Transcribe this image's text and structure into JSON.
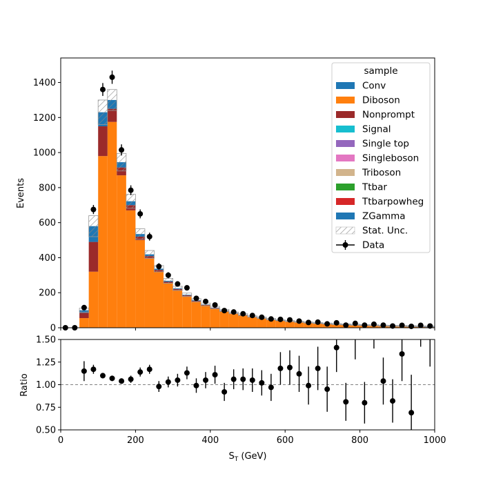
{
  "chart_data": [
    {
      "type": "bar",
      "stacked": true,
      "xlabel": "S",
      "xlabel_sub": "T",
      "xlabel_unit": " (GeV)",
      "ylabel": "Events",
      "xlim": [
        0,
        1000
      ],
      "ylim": [
        0,
        1540
      ],
      "yticks": [
        "0",
        "200",
        "400",
        "600",
        "800",
        "1000",
        "1200",
        "1400"
      ],
      "ytick_values": [
        0,
        200,
        400,
        600,
        800,
        1000,
        1200,
        1400
      ],
      "bin_edges": [
        50,
        75,
        100,
        125,
        150,
        175,
        200,
        225,
        250,
        275,
        300,
        325,
        350,
        375,
        400,
        425,
        450,
        475,
        500,
        525,
        550,
        575,
        600,
        625,
        650,
        675,
        700,
        725,
        750,
        775,
        800,
        825,
        850,
        875,
        900,
        925,
        950,
        975,
        1000
      ],
      "series": [
        {
          "name": "Diboson",
          "color": "#ff7f0e",
          "values": [
            55,
            320,
            980,
            1175,
            870,
            670,
            500,
            395,
            320,
            255,
            215,
            180,
            150,
            128,
            110,
            95,
            82,
            72,
            62,
            55,
            47,
            41,
            36,
            32,
            28,
            25,
            22,
            19,
            17,
            15,
            13,
            12,
            10,
            9,
            8,
            7,
            6,
            5
          ]
        },
        {
          "name": "Nonprompt",
          "color": "#9b2a2a",
          "values": [
            30,
            170,
            170,
            75,
            45,
            30,
            20,
            14,
            10,
            8,
            6,
            5,
            4,
            3,
            3,
            2,
            2,
            2,
            1,
            1,
            1,
            1,
            1,
            1,
            1,
            1,
            1,
            1,
            1,
            1,
            1,
            1,
            1,
            1,
            1,
            1,
            1,
            1
          ]
        },
        {
          "name": "ZGamma",
          "color": "#1f77b4",
          "values": [
            15,
            90,
            80,
            50,
            30,
            22,
            15,
            10,
            7,
            5,
            4,
            3,
            3,
            2,
            2,
            2,
            1,
            1,
            1,
            1,
            1,
            1,
            1,
            1,
            1,
            1,
            1,
            1,
            1,
            1,
            1,
            1,
            1,
            1,
            1,
            1,
            1,
            1
          ]
        }
      ],
      "stat_unc": [
        12,
        60,
        70,
        60,
        50,
        40,
        30,
        22,
        18,
        14,
        12,
        10,
        9,
        8,
        7,
        6,
        5,
        5,
        4,
        4,
        4,
        3,
        3,
        3,
        3,
        3,
        3,
        3,
        3,
        3,
        3,
        3,
        3,
        3,
        3,
        3,
        3,
        3
      ],
      "data": {
        "name": "Data",
        "x": [
          12.5,
          37.5,
          62.5,
          87.5,
          112.5,
          137.5,
          162.5,
          187.5,
          212.5,
          237.5,
          262.5,
          287.5,
          312.5,
          337.5,
          362.5,
          387.5,
          412.5,
          437.5,
          462.5,
          487.5,
          512.5,
          537.5,
          562.5,
          587.5,
          612.5,
          637.5,
          662.5,
          687.5,
          712.5,
          737.5,
          762.5,
          787.5,
          812.5,
          837.5,
          862.5,
          887.5,
          912.5,
          937.5,
          962.5,
          987.5
        ],
        "y": [
          0,
          0,
          115,
          675,
          1360,
          1430,
          1015,
          785,
          650,
          520,
          350,
          300,
          250,
          228,
          168,
          150,
          130,
          98,
          90,
          80,
          70,
          60,
          50,
          48,
          45,
          38,
          30,
          32,
          22,
          28,
          15,
          25,
          15,
          20,
          15,
          10,
          14,
          8,
          14,
          10
        ]
      },
      "legend": {
        "title": "sample",
        "placement": "upper right",
        "entries": [
          {
            "name": "Conv",
            "color": "#1f77b4",
            "kind": "patch"
          },
          {
            "name": "Diboson",
            "color": "#ff7f0e",
            "kind": "patch"
          },
          {
            "name": "Nonprompt",
            "color": "#9b2a2a",
            "kind": "patch"
          },
          {
            "name": "Signal",
            "color": "#17becf",
            "kind": "patch"
          },
          {
            "name": "Single top",
            "color": "#9467bd",
            "kind": "patch"
          },
          {
            "name": "Singleboson",
            "color": "#e377c2",
            "kind": "patch"
          },
          {
            "name": "Triboson",
            "color": "#d2b48c",
            "kind": "patch"
          },
          {
            "name": "Ttbar",
            "color": "#2ca02c",
            "kind": "patch"
          },
          {
            "name": "Ttbarpowheg",
            "color": "#d62728",
            "kind": "patch"
          },
          {
            "name": "ZGamma",
            "color": "#1f77b4",
            "kind": "patch"
          },
          {
            "name": "Stat. Unc.",
            "color": "#888888",
            "kind": "hatch"
          },
          {
            "name": "Data",
            "color": "#000000",
            "kind": "errorbar"
          }
        ]
      }
    },
    {
      "type": "scatter",
      "xlabel": "S",
      "xlabel_sub": "T",
      "xlabel_unit": " (GeV)",
      "ylabel": "Ratio",
      "xlim": [
        0,
        1000
      ],
      "ylim": [
        0.5,
        1.5
      ],
      "xticks": [
        "0",
        "200",
        "400",
        "600",
        "800",
        "1000"
      ],
      "xtick_values": [
        0,
        200,
        400,
        600,
        800,
        1000
      ],
      "yticks": [
        "0.50",
        "0.75",
        "1.00",
        "1.25",
        "1.50"
      ],
      "ytick_values": [
        0.5,
        0.75,
        1.0,
        1.25,
        1.5
      ],
      "reference_line": 1.0,
      "points": {
        "x": [
          62.5,
          87.5,
          112.5,
          137.5,
          162.5,
          187.5,
          212.5,
          237.5,
          262.5,
          287.5,
          312.5,
          337.5,
          362.5,
          387.5,
          412.5,
          437.5,
          462.5,
          487.5,
          512.5,
          537.5,
          562.5,
          587.5,
          612.5,
          637.5,
          662.5,
          687.5,
          712.5,
          737.5,
          762.5,
          812.5,
          862.5,
          887.5,
          912.5,
          937.5
        ],
        "y": [
          1.15,
          1.17,
          1.1,
          1.07,
          1.04,
          1.06,
          1.14,
          1.17,
          0.98,
          1.03,
          1.05,
          1.13,
          0.99,
          1.05,
          1.11,
          0.92,
          1.06,
          1.06,
          1.05,
          1.02,
          0.97,
          1.18,
          1.19,
          1.12,
          0.99,
          1.18,
          0.95,
          1.41,
          0.81,
          0.8,
          1.04,
          0.82,
          1.34,
          0.69
        ],
        "err": [
          0.11,
          0.05,
          0.03,
          0.03,
          0.03,
          0.04,
          0.05,
          0.05,
          0.06,
          0.06,
          0.07,
          0.07,
          0.08,
          0.09,
          0.1,
          0.1,
          0.11,
          0.12,
          0.13,
          0.14,
          0.15,
          0.18,
          0.19,
          0.2,
          0.21,
          0.24,
          0.25,
          0.27,
          0.21,
          0.23,
          0.26,
          0.24,
          0.3,
          0.42
        ]
      },
      "offscale_x": [
        787.5,
        837.5,
        962.5,
        987.5
      ],
      "offscale_lower": [
        1.28,
        1.4,
        1.42,
        1.2
      ]
    }
  ]
}
